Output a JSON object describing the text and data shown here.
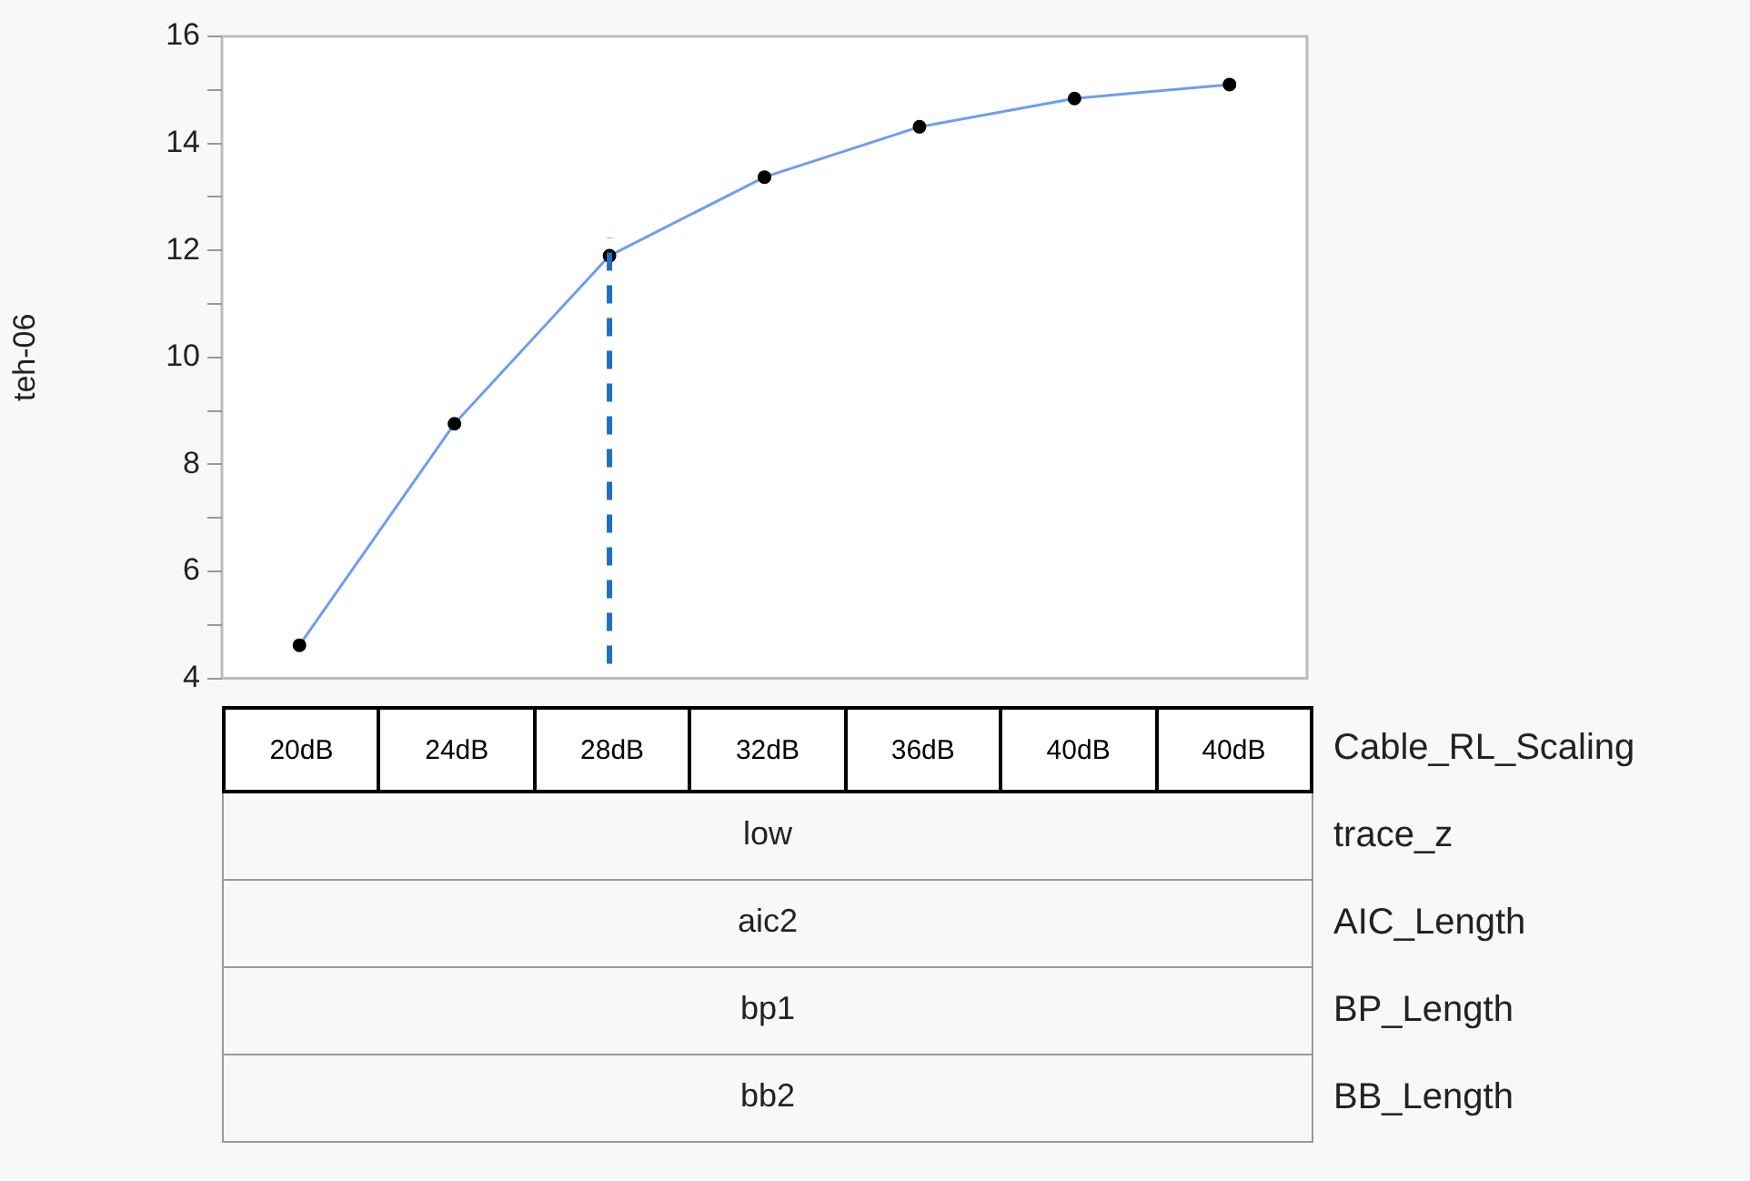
{
  "chart_data": {
    "type": "line",
    "categories": [
      "20dB",
      "24dB",
      "28dB",
      "32dB",
      "36dB",
      "40dB",
      "40dB"
    ],
    "series": [
      {
        "color": "#6f9cf0",
        "values": [
          4.62,
          8.76,
          11.9,
          13.37,
          14.31,
          14.84,
          15.1
        ]
      }
    ],
    "ylabel": "teh-06",
    "xlabel": "Cable_RL_Scaling",
    "ylim": [
      4,
      16
    ],
    "yticks": [
      4,
      {
        "value": 5,
        "label": null
      },
      6,
      {
        "value": 7,
        "label": null
      },
      8,
      {
        "value": 9,
        "label": null
      },
      10,
      {
        "value": 11,
        "label": null
      },
      12,
      {
        "value": 13,
        "label": null
      },
      14,
      {
        "value": 15,
        "label": null
      },
      16
    ],
    "ref_lines": [
      {
        "axis": "x",
        "value": "28dB",
        "color": "#1f6fbf",
        "line_style": "dashed"
      }
    ],
    "annotations": [
      "low",
      "trace_z",
      "aic2",
      "AIC_Length",
      "bp1",
      "BP_Length",
      "bb2",
      "BB_Length"
    ],
    "marker": "circle",
    "grid": false,
    "legend": false
  }
}
